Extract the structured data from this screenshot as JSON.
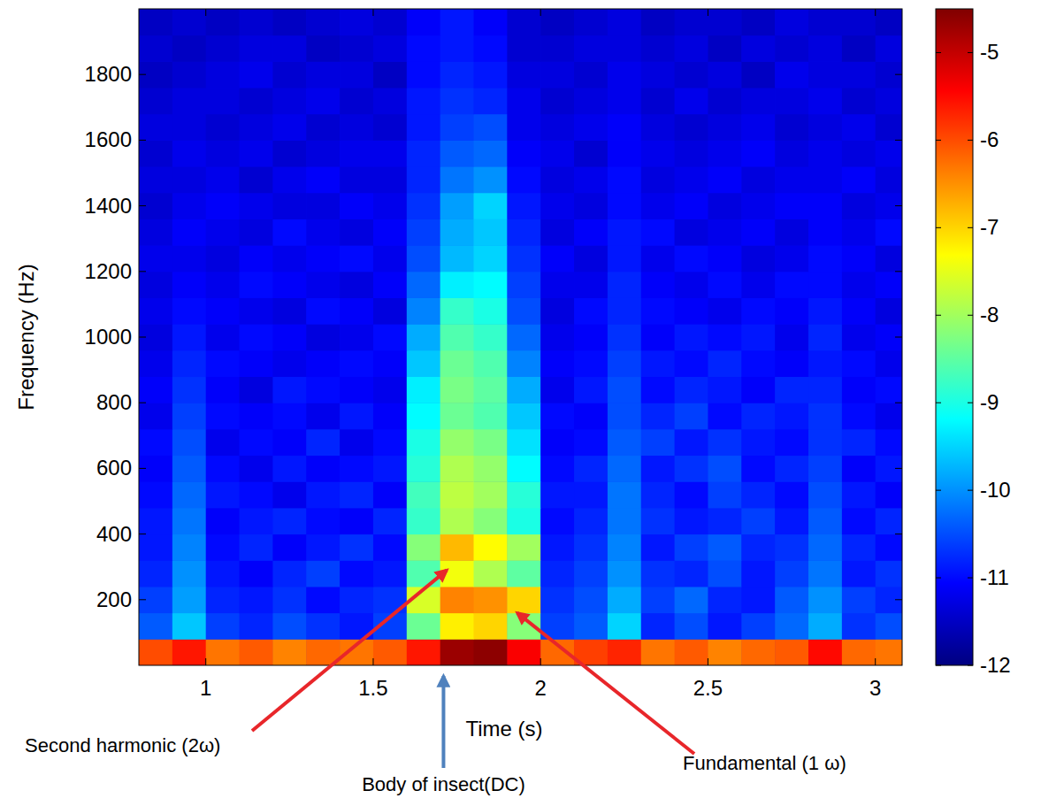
{
  "chart_data": {
    "type": "heatmap",
    "x_label": "Time (s)",
    "y_label": "Frequency (Hz)",
    "xlim": [
      0.8,
      3.08
    ],
    "ylim": [
      0,
      2000
    ],
    "xticks": [
      1,
      1.5,
      2,
      2.5,
      3
    ],
    "yticks": [
      200,
      400,
      600,
      800,
      1000,
      1200,
      1400,
      1600,
      1800
    ],
    "x_edges": [
      0.8,
      0.9,
      1.0,
      1.1,
      1.2,
      1.3,
      1.4,
      1.5,
      1.6,
      1.7,
      1.8,
      1.9,
      2.0,
      2.1,
      2.2,
      2.3,
      2.4,
      2.5,
      2.6,
      2.7,
      2.8,
      2.9,
      3.0,
      3.1
    ],
    "y_edges": [
      0,
      80,
      160,
      240,
      320,
      400,
      480,
      560,
      640,
      720,
      800,
      880,
      960,
      1040,
      1120,
      1200,
      1280,
      1360,
      1440,
      1520,
      1600,
      1680,
      1760,
      1840,
      1920,
      2000
    ],
    "cells": [
      [
        -6.0,
        -5.6,
        -6.3,
        -6.1,
        -6.4,
        -6.2,
        -6.3,
        -6.1,
        -5.6,
        -4.7,
        -4.6,
        -5.4,
        -6.2,
        -5.9,
        -5.7,
        -6.3,
        -6.1,
        -6.4,
        -6.2,
        -6.1,
        -5.5,
        -6.2,
        -6.3
      ],
      [
        -10.4,
        -9.6,
        -10.6,
        -10.8,
        -10.5,
        -10.7,
        -10.9,
        -10.6,
        -8.4,
        -7.2,
        -7.0,
        -8.2,
        -10.6,
        -10.4,
        -9.5,
        -10.8,
        -10.5,
        -10.9,
        -10.6,
        -10.3,
        -9.8,
        -10.7,
        -10.5
      ],
      [
        -10.6,
        -9.9,
        -10.8,
        -10.9,
        -10.7,
        -11.0,
        -10.8,
        -10.7,
        -7.6,
        -6.4,
        -6.5,
        -7.0,
        -10.7,
        -10.5,
        -9.8,
        -10.6,
        -10.3,
        -10.8,
        -10.9,
        -10.4,
        -10.0,
        -10.6,
        -10.8
      ],
      [
        -10.8,
        -10.0,
        -10.9,
        -11.1,
        -10.8,
        -10.6,
        -11.0,
        -10.9,
        -8.6,
        -7.4,
        -7.9,
        -8.5,
        -10.8,
        -10.6,
        -10.0,
        -10.7,
        -10.8,
        -10.5,
        -10.9,
        -10.6,
        -10.2,
        -10.9,
        -10.7
      ],
      [
        -10.9,
        -10.1,
        -11.0,
        -10.8,
        -11.1,
        -10.9,
        -10.7,
        -11.0,
        -8.2,
        -6.8,
        -7.3,
        -8.0,
        -10.9,
        -10.7,
        -10.1,
        -10.9,
        -10.6,
        -10.4,
        -10.8,
        -10.7,
        -10.3,
        -10.8,
        -11.0
      ],
      [
        -10.9,
        -10.2,
        -11.1,
        -10.9,
        -10.8,
        -11.0,
        -11.1,
        -10.8,
        -8.8,
        -7.9,
        -8.2,
        -9.0,
        -11.0,
        -10.8,
        -10.2,
        -10.7,
        -10.9,
        -10.8,
        -10.6,
        -10.9,
        -10.4,
        -11.0,
        -10.8
      ],
      [
        -11.0,
        -10.3,
        -10.9,
        -11.0,
        -11.2,
        -10.9,
        -10.8,
        -11.1,
        -8.7,
        -7.8,
        -8.0,
        -8.9,
        -10.9,
        -10.9,
        -10.2,
        -10.8,
        -11.0,
        -10.6,
        -10.8,
        -11.0,
        -10.5,
        -10.9,
        -11.1
      ],
      [
        -11.1,
        -10.4,
        -11.0,
        -11.2,
        -10.9,
        -11.1,
        -11.0,
        -10.9,
        -8.9,
        -7.9,
        -8.1,
        -9.2,
        -11.0,
        -10.8,
        -10.3,
        -10.9,
        -10.7,
        -10.5,
        -11.0,
        -10.8,
        -10.6,
        -11.1,
        -10.9
      ],
      [
        -11.0,
        -10.5,
        -11.2,
        -11.0,
        -11.1,
        -10.8,
        -11.2,
        -11.0,
        -9.0,
        -8.1,
        -8.3,
        -9.4,
        -11.1,
        -11.0,
        -10.4,
        -10.6,
        -10.9,
        -10.7,
        -10.9,
        -11.0,
        -10.7,
        -10.8,
        -11.0
      ],
      [
        -11.2,
        -10.6,
        -11.0,
        -11.1,
        -11.0,
        -11.2,
        -10.9,
        -11.1,
        -9.2,
        -8.4,
        -8.6,
        -9.6,
        -11.0,
        -11.1,
        -10.5,
        -10.8,
        -10.6,
        -11.0,
        -10.8,
        -10.9,
        -10.7,
        -11.0,
        -11.2
      ],
      [
        -11.1,
        -10.7,
        -11.1,
        -11.3,
        -10.9,
        -11.0,
        -11.1,
        -11.2,
        -9.3,
        -8.3,
        -8.5,
        -9.8,
        -11.2,
        -10.9,
        -10.5,
        -11.0,
        -10.8,
        -10.9,
        -11.1,
        -10.8,
        -10.8,
        -11.1,
        -11.0
      ],
      [
        -11.2,
        -10.8,
        -11.0,
        -11.1,
        -11.2,
        -11.1,
        -11.0,
        -11.1,
        -9.6,
        -8.4,
        -8.6,
        -10.1,
        -11.1,
        -11.0,
        -10.6,
        -10.9,
        -11.0,
        -10.8,
        -11.0,
        -11.1,
        -10.9,
        -11.0,
        -11.2
      ],
      [
        -11.3,
        -10.9,
        -11.2,
        -11.0,
        -11.1,
        -11.3,
        -11.2,
        -11.0,
        -9.8,
        -8.6,
        -8.8,
        -10.3,
        -11.2,
        -11.1,
        -10.7,
        -11.1,
        -10.9,
        -11.0,
        -10.9,
        -11.2,
        -10.8,
        -11.2,
        -11.1
      ],
      [
        -11.2,
        -11.0,
        -11.1,
        -11.2,
        -11.3,
        -11.0,
        -11.1,
        -11.3,
        -10.1,
        -8.8,
        -9.0,
        -10.5,
        -11.3,
        -11.0,
        -10.8,
        -11.0,
        -11.1,
        -11.2,
        -11.0,
        -11.1,
        -10.9,
        -11.1,
        -11.3
      ],
      [
        -11.3,
        -11.1,
        -11.2,
        -11.0,
        -11.1,
        -11.2,
        -11.3,
        -11.1,
        -10.3,
        -9.3,
        -9.2,
        -10.6,
        -11.2,
        -11.2,
        -10.8,
        -11.1,
        -11.2,
        -11.0,
        -11.2,
        -11.0,
        -11.0,
        -11.2,
        -11.1
      ],
      [
        -11.2,
        -11.2,
        -11.3,
        -11.1,
        -11.2,
        -11.1,
        -11.0,
        -11.2,
        -10.5,
        -9.7,
        -9.5,
        -10.7,
        -11.1,
        -11.3,
        -10.9,
        -11.2,
        -11.0,
        -11.1,
        -11.3,
        -11.2,
        -11.0,
        -11.1,
        -11.3
      ],
      [
        -11.3,
        -11.1,
        -11.2,
        -11.3,
        -11.0,
        -11.2,
        -11.3,
        -11.1,
        -10.6,
        -9.8,
        -9.6,
        -10.8,
        -11.3,
        -11.1,
        -10.9,
        -11.0,
        -11.3,
        -11.2,
        -11.1,
        -11.3,
        -11.1,
        -11.2,
        -11.0
      ],
      [
        -11.4,
        -11.2,
        -11.1,
        -11.2,
        -11.3,
        -11.3,
        -11.1,
        -11.2,
        -10.7,
        -9.9,
        -9.5,
        -10.9,
        -11.2,
        -11.3,
        -11.0,
        -11.2,
        -11.1,
        -11.3,
        -11.2,
        -11.1,
        -11.1,
        -11.3,
        -11.2
      ],
      [
        -11.3,
        -11.3,
        -11.2,
        -11.4,
        -11.2,
        -11.1,
        -11.3,
        -11.3,
        -10.8,
        -10.2,
        -10.0,
        -11.0,
        -11.3,
        -11.2,
        -11.0,
        -11.3,
        -11.2,
        -11.1,
        -11.3,
        -11.2,
        -11.2,
        -11.1,
        -11.3
      ],
      [
        -11.4,
        -11.2,
        -11.3,
        -11.2,
        -11.4,
        -11.3,
        -11.2,
        -11.2,
        -10.8,
        -10.4,
        -10.3,
        -11.1,
        -11.2,
        -11.4,
        -11.1,
        -11.2,
        -11.3,
        -11.2,
        -11.1,
        -11.3,
        -11.2,
        -11.3,
        -11.2
      ],
      [
        -11.3,
        -11.3,
        -11.4,
        -11.3,
        -11.2,
        -11.4,
        -11.3,
        -11.4,
        -10.9,
        -10.6,
        -10.5,
        -11.2,
        -11.3,
        -11.2,
        -11.1,
        -11.3,
        -11.4,
        -11.3,
        -11.2,
        -11.4,
        -11.3,
        -11.2,
        -11.4
      ],
      [
        -11.4,
        -11.3,
        -11.3,
        -11.4,
        -11.3,
        -11.2,
        -11.4,
        -11.3,
        -10.9,
        -10.7,
        -10.8,
        -11.2,
        -11.4,
        -11.3,
        -11.2,
        -11.4,
        -11.2,
        -11.4,
        -11.3,
        -11.3,
        -11.2,
        -11.4,
        -11.3
      ],
      [
        -11.5,
        -11.4,
        -11.3,
        -11.2,
        -11.4,
        -11.3,
        -11.3,
        -11.5,
        -11.0,
        -10.8,
        -10.9,
        -11.3,
        -11.3,
        -11.4,
        -11.2,
        -11.3,
        -11.4,
        -11.3,
        -11.5,
        -11.2,
        -11.3,
        -11.3,
        -11.4
      ],
      [
        -11.4,
        -11.5,
        -11.4,
        -11.3,
        -11.3,
        -11.5,
        -11.4,
        -11.3,
        -11.0,
        -10.9,
        -11.0,
        -11.4,
        -11.4,
        -11.3,
        -11.3,
        -11.4,
        -11.3,
        -11.5,
        -11.3,
        -11.4,
        -11.3,
        -11.5,
        -11.3
      ],
      [
        -11.5,
        -11.4,
        -11.5,
        -11.4,
        -11.5,
        -11.4,
        -11.3,
        -11.4,
        -11.1,
        -10.9,
        -11.1,
        -11.4,
        -11.5,
        -11.4,
        -11.3,
        -11.5,
        -11.4,
        -11.4,
        -11.5,
        -11.3,
        -11.4,
        -11.4,
        -11.5
      ]
    ],
    "colorbar": {
      "lim": [
        -12,
        -4.5
      ],
      "ticks": [
        -12,
        -11,
        -10,
        -9,
        -8,
        -7,
        -6,
        -5
      ]
    },
    "annotations": [
      {
        "text": "Second harmonic (2ω)",
        "x": 1.72,
        "y": 290,
        "color": "#e8262a"
      },
      {
        "text": "Body of insect(DC)",
        "x": 1.71,
        "y": 0,
        "color": "#4f81bd"
      },
      {
        "text": "Fundamental (1 ω)",
        "x": 1.93,
        "y": 160,
        "color": "#e8262a"
      }
    ]
  }
}
